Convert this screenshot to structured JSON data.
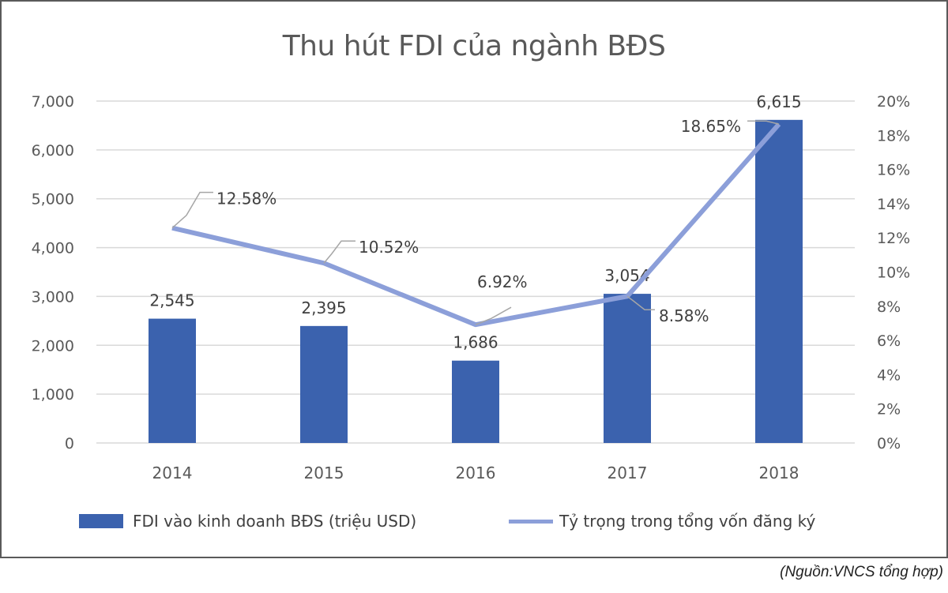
{
  "chart_data": {
    "type": "bar+line",
    "title": "Thu hút FDI của ngành BĐS",
    "categories": [
      "2014",
      "2015",
      "2016",
      "2017",
      "2018"
    ],
    "series": [
      {
        "name": "FDI vào kinh doanh BĐS (triệu USD)",
        "type": "bar",
        "axis": "left",
        "color": "#3b62ae",
        "values": [
          2545,
          2395,
          1686,
          3054,
          6615
        ],
        "labels": [
          "2,545",
          "2,395",
          "1,686",
          "3,054",
          "6,615"
        ]
      },
      {
        "name": "Tỷ trọng trong tổng vốn đăng ký",
        "type": "line",
        "axis": "right",
        "color": "#8c9fd9",
        "values": [
          12.58,
          10.52,
          6.92,
          8.58,
          18.65
        ],
        "labels": [
          "12.58%",
          "10.52%",
          "6.92%",
          "8.58%",
          "18.65%"
        ]
      }
    ],
    "left_axis": {
      "ylim": [
        0,
        7000
      ],
      "ticks": [
        "0",
        "1,000",
        "2,000",
        "3,000",
        "4,000",
        "5,000",
        "6,000",
        "7,000"
      ]
    },
    "right_axis": {
      "ylim": [
        0,
        20
      ],
      "ticks": [
        "0%",
        "2%",
        "4%",
        "6%",
        "8%",
        "10%",
        "12%",
        "14%",
        "16%",
        "18%",
        "20%"
      ]
    },
    "xlabel": "",
    "ylabel": "",
    "grid": true,
    "legend_position": "bottom"
  },
  "title": "Thu hút FDI của ngành BĐS",
  "legend": {
    "bar_label": "FDI vào kinh doanh BĐS (triệu USD)",
    "line_label": "Tỷ trọng trong tổng vốn đăng ký"
  },
  "source": "(Nguồn:VNCS tổng hợp)"
}
